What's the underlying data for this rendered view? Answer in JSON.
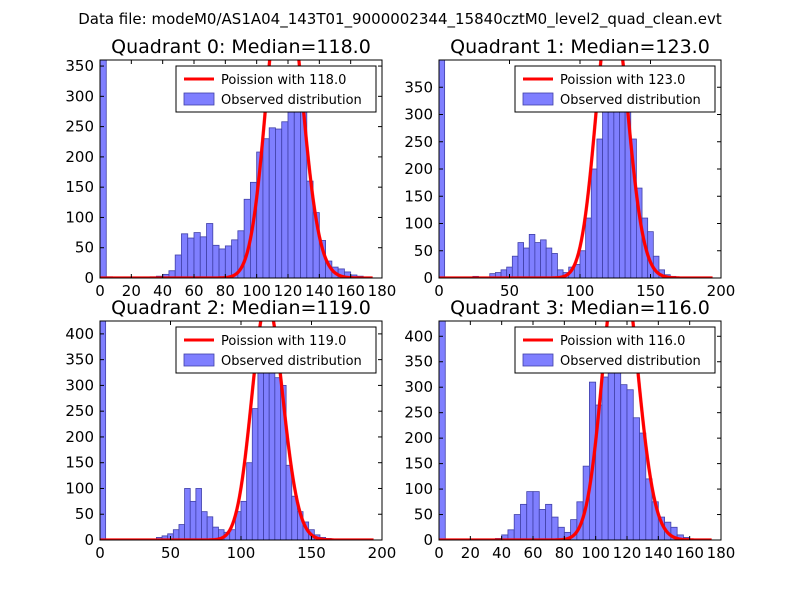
{
  "figure": {
    "suptitle": "Data file: modeM0/AS1A04_143T01_9000002344_15840cztM0_level2_quad_clean.evt"
  },
  "colors": {
    "bar_fill": "#7f7fff",
    "bar_edge": "#4040a8",
    "poisson": "#ff0000",
    "axis": "#000000",
    "legend_edge": "#000000"
  },
  "chart_data": [
    {
      "type": "bar",
      "title": "Quadrant 0: Median=118.0",
      "median": 118.0,
      "bin_width": 4,
      "xlim": [
        0,
        180
      ],
      "ylim": [
        0,
        360
      ],
      "xticks": [
        0,
        20,
        40,
        60,
        80,
        100,
        120,
        140,
        160,
        180
      ],
      "yticks": [
        0,
        50,
        100,
        150,
        200,
        250,
        300,
        350
      ],
      "legend": [
        "Poission with 118.0",
        "Observed distribution"
      ],
      "legend_loc": "upper-right",
      "bins": [
        {
          "x": 0,
          "y": 360
        },
        {
          "x": 4,
          "y": 2
        },
        {
          "x": 8,
          "y": 1
        },
        {
          "x": 12,
          "y": 1
        },
        {
          "x": 16,
          "y": 1
        },
        {
          "x": 20,
          "y": 1
        },
        {
          "x": 24,
          "y": 1
        },
        {
          "x": 28,
          "y": 1
        },
        {
          "x": 32,
          "y": 2
        },
        {
          "x": 36,
          "y": 3
        },
        {
          "x": 40,
          "y": 6
        },
        {
          "x": 44,
          "y": 12
        },
        {
          "x": 48,
          "y": 38
        },
        {
          "x": 52,
          "y": 73
        },
        {
          "x": 56,
          "y": 66
        },
        {
          "x": 60,
          "y": 75
        },
        {
          "x": 64,
          "y": 68
        },
        {
          "x": 68,
          "y": 90
        },
        {
          "x": 72,
          "y": 54
        },
        {
          "x": 76,
          "y": 48
        },
        {
          "x": 80,
          "y": 53
        },
        {
          "x": 84,
          "y": 63
        },
        {
          "x": 88,
          "y": 78
        },
        {
          "x": 92,
          "y": 130
        },
        {
          "x": 96,
          "y": 158
        },
        {
          "x": 100,
          "y": 208
        },
        {
          "x": 104,
          "y": 230
        },
        {
          "x": 108,
          "y": 248
        },
        {
          "x": 112,
          "y": 246
        },
        {
          "x": 116,
          "y": 258
        },
        {
          "x": 120,
          "y": 330
        },
        {
          "x": 124,
          "y": 280
        },
        {
          "x": 128,
          "y": 305
        },
        {
          "x": 132,
          "y": 160
        },
        {
          "x": 136,
          "y": 108
        },
        {
          "x": 140,
          "y": 62
        },
        {
          "x": 144,
          "y": 28
        },
        {
          "x": 148,
          "y": 18
        },
        {
          "x": 152,
          "y": 15
        },
        {
          "x": 156,
          "y": 10
        },
        {
          "x": 160,
          "y": 5
        },
        {
          "x": 164,
          "y": 3
        }
      ]
    },
    {
      "type": "bar",
      "title": "Quadrant 1: Median=123.0",
      "median": 123.0,
      "bin_width": 4,
      "xlim": [
        0,
        200
      ],
      "ylim": [
        0,
        400
      ],
      "xticks": [
        0,
        50,
        100,
        150,
        200
      ],
      "yticks": [
        0,
        50,
        100,
        150,
        200,
        250,
        300,
        350
      ],
      "legend": [
        "Poission with 123.0",
        "Observed distribution"
      ],
      "legend_loc": "upper-right",
      "bins": [
        {
          "x": 0,
          "y": 400
        },
        {
          "x": 16,
          "y": 2
        },
        {
          "x": 24,
          "y": 3
        },
        {
          "x": 36,
          "y": 8
        },
        {
          "x": 40,
          "y": 10
        },
        {
          "x": 44,
          "y": 15
        },
        {
          "x": 48,
          "y": 20
        },
        {
          "x": 52,
          "y": 40
        },
        {
          "x": 56,
          "y": 65
        },
        {
          "x": 60,
          "y": 55
        },
        {
          "x": 64,
          "y": 80
        },
        {
          "x": 68,
          "y": 65
        },
        {
          "x": 72,
          "y": 70
        },
        {
          "x": 76,
          "y": 55
        },
        {
          "x": 80,
          "y": 45
        },
        {
          "x": 84,
          "y": 15
        },
        {
          "x": 88,
          "y": 10
        },
        {
          "x": 92,
          "y": 20
        },
        {
          "x": 96,
          "y": 25
        },
        {
          "x": 100,
          "y": 50
        },
        {
          "x": 104,
          "y": 110
        },
        {
          "x": 108,
          "y": 200
        },
        {
          "x": 112,
          "y": 255
        },
        {
          "x": 116,
          "y": 320
        },
        {
          "x": 120,
          "y": 345
        },
        {
          "x": 124,
          "y": 340
        },
        {
          "x": 128,
          "y": 310
        },
        {
          "x": 132,
          "y": 330
        },
        {
          "x": 136,
          "y": 255
        },
        {
          "x": 140,
          "y": 165
        },
        {
          "x": 144,
          "y": 110
        },
        {
          "x": 148,
          "y": 85
        },
        {
          "x": 152,
          "y": 40
        },
        {
          "x": 156,
          "y": 15
        },
        {
          "x": 160,
          "y": 6
        },
        {
          "x": 164,
          "y": 3
        }
      ]
    },
    {
      "type": "bar",
      "title": "Quadrant 2: Median=119.0",
      "median": 119.0,
      "bin_width": 4,
      "xlim": [
        0,
        200
      ],
      "ylim": [
        0,
        425
      ],
      "xticks": [
        0,
        50,
        100,
        150,
        200
      ],
      "yticks": [
        0,
        50,
        100,
        150,
        200,
        250,
        300,
        350,
        400
      ],
      "legend": [
        "Poission with 119.0",
        "Observed distribution"
      ],
      "legend_loc": "upper-right",
      "bins": [
        {
          "x": 0,
          "y": 425
        },
        {
          "x": 40,
          "y": 5
        },
        {
          "x": 44,
          "y": 8
        },
        {
          "x": 48,
          "y": 12
        },
        {
          "x": 52,
          "y": 20
        },
        {
          "x": 56,
          "y": 30
        },
        {
          "x": 60,
          "y": 100
        },
        {
          "x": 64,
          "y": 75
        },
        {
          "x": 68,
          "y": 100
        },
        {
          "x": 72,
          "y": 55
        },
        {
          "x": 76,
          "y": 45
        },
        {
          "x": 80,
          "y": 25
        },
        {
          "x": 84,
          "y": 20
        },
        {
          "x": 88,
          "y": 15
        },
        {
          "x": 92,
          "y": 20
        },
        {
          "x": 96,
          "y": 55
        },
        {
          "x": 100,
          "y": 75
        },
        {
          "x": 104,
          "y": 150
        },
        {
          "x": 108,
          "y": 255
        },
        {
          "x": 112,
          "y": 360
        },
        {
          "x": 116,
          "y": 400
        },
        {
          "x": 120,
          "y": 365
        },
        {
          "x": 124,
          "y": 315
        },
        {
          "x": 128,
          "y": 300
        },
        {
          "x": 132,
          "y": 145
        },
        {
          "x": 136,
          "y": 85
        },
        {
          "x": 140,
          "y": 55
        },
        {
          "x": 144,
          "y": 35
        },
        {
          "x": 148,
          "y": 20
        },
        {
          "x": 152,
          "y": 10
        },
        {
          "x": 156,
          "y": 5
        },
        {
          "x": 160,
          "y": 3
        }
      ]
    },
    {
      "type": "bar",
      "title": "Quadrant 3: Median=116.0",
      "median": 116.0,
      "bin_width": 4,
      "xlim": [
        0,
        180
      ],
      "ylim": [
        0,
        430
      ],
      "xticks": [
        0,
        20,
        40,
        60,
        80,
        100,
        120,
        140,
        160,
        180
      ],
      "yticks": [
        0,
        50,
        100,
        150,
        200,
        250,
        300,
        350,
        400
      ],
      "legend": [
        "Poission with 116.0",
        "Observed distribution"
      ],
      "legend_loc": "upper-right",
      "bins": [
        {
          "x": 0,
          "y": 430
        },
        {
          "x": 36,
          "y": 3
        },
        {
          "x": 40,
          "y": 10
        },
        {
          "x": 44,
          "y": 20
        },
        {
          "x": 48,
          "y": 50
        },
        {
          "x": 52,
          "y": 70
        },
        {
          "x": 56,
          "y": 95
        },
        {
          "x": 60,
          "y": 95
        },
        {
          "x": 64,
          "y": 60
        },
        {
          "x": 68,
          "y": 70
        },
        {
          "x": 72,
          "y": 45
        },
        {
          "x": 76,
          "y": 25
        },
        {
          "x": 80,
          "y": 15
        },
        {
          "x": 84,
          "y": 40
        },
        {
          "x": 88,
          "y": 75
        },
        {
          "x": 92,
          "y": 145
        },
        {
          "x": 96,
          "y": 310
        },
        {
          "x": 100,
          "y": 265
        },
        {
          "x": 104,
          "y": 320
        },
        {
          "x": 108,
          "y": 415
        },
        {
          "x": 112,
          "y": 370
        },
        {
          "x": 116,
          "y": 305
        },
        {
          "x": 120,
          "y": 295
        },
        {
          "x": 124,
          "y": 240
        },
        {
          "x": 128,
          "y": 210
        },
        {
          "x": 132,
          "y": 120
        },
        {
          "x": 136,
          "y": 75
        },
        {
          "x": 140,
          "y": 45
        },
        {
          "x": 144,
          "y": 35
        },
        {
          "x": 148,
          "y": 25
        },
        {
          "x": 152,
          "y": 10
        },
        {
          "x": 156,
          "y": 5
        }
      ]
    }
  ]
}
